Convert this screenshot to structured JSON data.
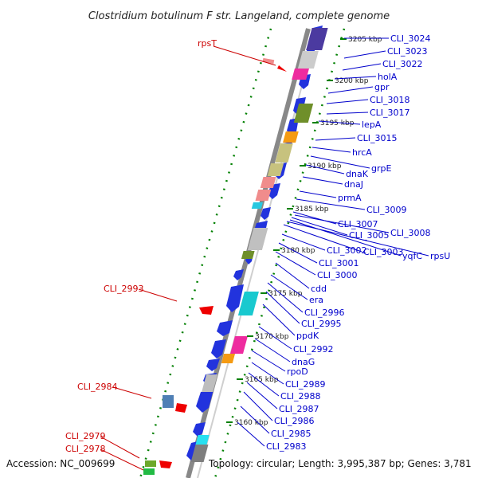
{
  "title": "Clostridium botulinum F str. Langeland, complete genome",
  "footer": {
    "accession": "Accession: NC_009699",
    "topology": "Topology: circular; Length: 3,995,387 bp; Genes: 3,781"
  },
  "colors": {
    "blue_label": "#0000cc",
    "red_label": "#cc0000",
    "backbone": "#888888",
    "tick": "#008000",
    "forward_arrow": "#0000ee",
    "reverse_arrow": "#ee0000"
  },
  "ticks": [
    {
      "label": "3205 kbp"
    },
    {
      "label": "3200 kbp"
    },
    {
      "label": "3195 kbp"
    },
    {
      "label": "3190 kbp"
    },
    {
      "label": "3185 kbp"
    },
    {
      "label": "3180 kbp"
    },
    {
      "label": "3175 kbp"
    },
    {
      "label": "3170 kbp"
    },
    {
      "label": "3165 kbp"
    },
    {
      "label": "3160 kbp"
    }
  ],
  "right_labels": [
    "CLI_3024",
    "CLI_3023",
    "CLI_3022",
    "holA",
    "gpr",
    "CLI_3018",
    "CLI_3017",
    "lepA",
    "CLI_3015",
    "hrcA",
    "grpE",
    "dnaK",
    "dnaJ",
    "prmA",
    "CLI_3009",
    "CLI_3007",
    "CLI_3008",
    "CLI_3005",
    "yqfC",
    "rpsU",
    "CLI_3003",
    "CLI_3002",
    "CLI_3001",
    "CLI_3000",
    "cdd",
    "era",
    "CLI_2996",
    "CLI_2995",
    "ppdK",
    "CLI_2992",
    "dnaG",
    "rpoD",
    "CLI_2989",
    "CLI_2988",
    "CLI_2987",
    "CLI_2986",
    "CLI_2985",
    "CLI_2983"
  ],
  "left_labels": [
    "rpsT",
    "CLI_2993",
    "CLI_2984",
    "CLI_2979",
    "CLI_2978"
  ]
}
